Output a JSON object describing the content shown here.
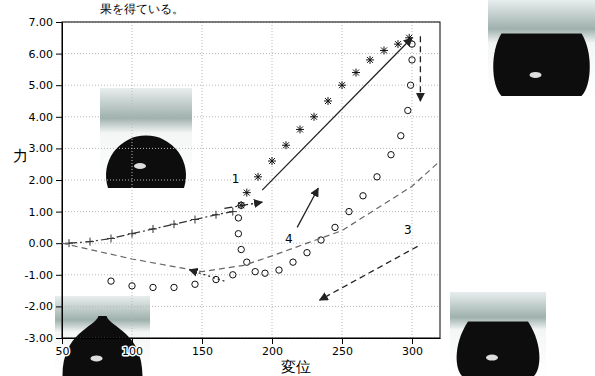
{
  "chart_data": {
    "type": "scatter",
    "caption": "果を得ている。",
    "x_label": "変位",
    "y_label": "力",
    "xlim": [
      50,
      320
    ],
    "xticks": [
      50,
      100,
      150,
      200,
      250,
      300
    ],
    "ylim": [
      -3,
      7
    ],
    "yticks": [
      {
        "value": -3,
        "label": "-3.00"
      },
      {
        "value": -2,
        "label": "-2.00"
      },
      {
        "value": -1,
        "label": "-1.00"
      },
      {
        "value": 0,
        "label": "0.00"
      },
      {
        "value": 1,
        "label": "1.00"
      },
      {
        "value": 2,
        "label": "2.00"
      },
      {
        "value": 3,
        "label": "3.00"
      },
      {
        "value": 4,
        "label": "4.00"
      },
      {
        "value": 5,
        "label": "5.00"
      },
      {
        "value": 6,
        "label": "6.00"
      },
      {
        "value": 7,
        "label": "7.00"
      }
    ],
    "grid": true,
    "series": [
      {
        "color": "#333333",
        "marker": "plus",
        "line_style": "dashdot",
        "type": "line",
        "x": [
          55,
          70,
          85,
          100,
          115,
          130,
          145,
          160,
          172
        ],
        "values": [
          0.0,
          0.05,
          0.15,
          0.3,
          0.45,
          0.6,
          0.75,
          0.9,
          1.0
        ]
      },
      {
        "color": "#111111",
        "marker": "star",
        "line_style": "none",
        "type": "scatter",
        "x": [
          178,
          182,
          190,
          200,
          210,
          220,
          230,
          240,
          250,
          260,
          270,
          280,
          290,
          298
        ],
        "values": [
          1.2,
          1.6,
          2.1,
          2.6,
          3.1,
          3.6,
          4.0,
          4.5,
          5.0,
          5.4,
          5.8,
          6.1,
          6.3,
          6.5
        ]
      },
      {
        "color": "#111111",
        "marker": "circle",
        "line_style": "none",
        "type": "scatter",
        "x": [
          300,
          300,
          299,
          297,
          292,
          285,
          275,
          265,
          255,
          245,
          235,
          225,
          215,
          205,
          195,
          188,
          182,
          178,
          176,
          176,
          178
        ],
        "values": [
          6.3,
          5.8,
          5.0,
          4.2,
          3.4,
          2.8,
          2.1,
          1.5,
          1.0,
          0.5,
          0.1,
          -0.3,
          -0.6,
          -0.85,
          -0.95,
          -0.9,
          -0.6,
          -0.2,
          0.3,
          0.8,
          1.2
        ]
      },
      {
        "color": "#111111",
        "marker": "circle",
        "line_style": "none",
        "type": "scatter",
        "x": [
          85,
          100,
          115,
          130,
          145,
          160,
          172
        ],
        "values": [
          -1.2,
          -1.35,
          -1.4,
          -1.4,
          -1.3,
          -1.15,
          -1.0
        ]
      },
      {
        "color": "#666666",
        "marker": "none",
        "line_style": "dashed",
        "type": "line",
        "x": [
          50,
          100,
          150,
          180,
          200,
          250,
          300,
          320
        ],
        "values": [
          0.0,
          -0.5,
          -0.9,
          -0.7,
          -0.4,
          0.4,
          1.8,
          2.6
        ]
      }
    ],
    "annotations": [
      {
        "text": "1",
        "x": 174,
        "y": 1.9
      },
      {
        "text": "3",
        "x": 297,
        "y": 0.3
      },
      {
        "text": "4",
        "x": 212,
        "y": 0.0
      }
    ],
    "arrows": [
      {
        "x": [
          193,
          300
        ],
        "y": [
          1.68,
          6.5
        ],
        "line_style": "solid"
      },
      {
        "x": [
          306,
          306
        ],
        "y": [
          6.55,
          4.5
        ],
        "line_style": "dashed"
      },
      {
        "x": [
          304,
          234
        ],
        "y": [
          -0.1,
          -1.8
        ],
        "line_style": "dashed"
      },
      {
        "x": [
          218,
          233
        ],
        "y": [
          0.5,
          1.74
        ],
        "line_style": "solid"
      },
      {
        "x": [
          166,
          193
        ],
        "y": [
          1.1,
          1.3
        ],
        "line_style": "dashdot"
      },
      {
        "x": [
          166,
          141
        ],
        "y": [
          -1.2,
          -0.84
        ],
        "line_style": "dotted"
      }
    ]
  }
}
